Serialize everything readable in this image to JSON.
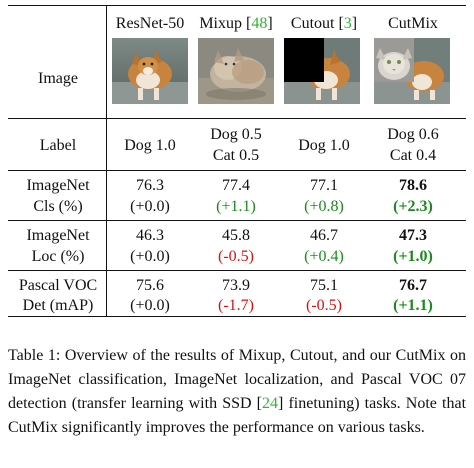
{
  "header": {
    "col1": "ResNet-50",
    "col2_name": "Mixup",
    "col2_ref": "48",
    "col3_name": "Cutout",
    "col3_ref": "3",
    "col4": "CutMix"
  },
  "row_image_label": "Image",
  "rows": {
    "label": {
      "name": "Label",
      "c1": "Dog 1.0",
      "c2a": "Dog 0.5",
      "c2b": "Cat 0.5",
      "c3": "Dog 1.0",
      "c4a": "Dog 0.6",
      "c4b": "Cat 0.4"
    },
    "cls": {
      "name1": "ImageNet",
      "name2": "Cls (%)",
      "c1": "76.3",
      "d1": "(+0.0)",
      "c2": "77.4",
      "d2": "(+1.1)",
      "c3": "77.1",
      "d3": "(+0.8)",
      "c4": "78.6",
      "d4": "(+2.3)"
    },
    "loc": {
      "name1": "ImageNet",
      "name2": "Loc (%)",
      "c1": "46.3",
      "d1": "(+0.0)",
      "c2": "45.8",
      "d2": "(-0.5)",
      "c3": "46.7",
      "d3": "(+0.4)",
      "c4": "47.3",
      "d4": "(+1.0)"
    },
    "det": {
      "name1": "Pascal VOC",
      "name2": "Det (mAP)",
      "c1": "75.6",
      "d1": "(+0.0)",
      "c2": "73.9",
      "d2": "(-1.7)",
      "c3": "75.1",
      "d3": "(-0.5)",
      "c4": "76.7",
      "d4": "(+1.1)"
    }
  },
  "caption": {
    "p1": "Table 1: Overview of the results of Mixup, Cutout, and our CutMix on ImageNet classification, ImageNet localization, and Pascal VOC 07 detection (transfer learning with SSD [",
    "ref": "24",
    "p2": "] finetuning) tasks. Note that CutMix significantly improves the performance on various tasks."
  },
  "colors": {
    "positive": "#1e8a1e",
    "negative": "#d01515",
    "reference": "#2fb82f"
  }
}
